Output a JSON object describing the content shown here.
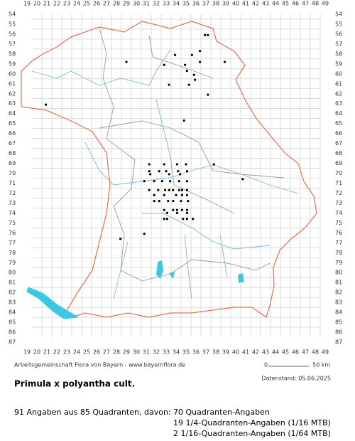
{
  "map": {
    "columns": [
      19,
      20,
      21,
      22,
      23,
      24,
      25,
      26,
      27,
      28,
      29,
      30,
      31,
      32,
      33,
      34,
      35,
      36,
      37,
      38,
      39,
      40,
      41,
      42,
      43,
      44,
      45,
      46,
      47,
      48,
      49
    ],
    "rows": [
      54,
      55,
      56,
      57,
      58,
      59,
      60,
      61,
      62,
      63,
      64,
      65,
      66,
      67,
      68,
      69,
      70,
      71,
      72,
      73,
      74,
      75,
      76,
      77,
      78,
      79,
      80,
      81,
      82,
      83,
      84,
      85,
      86,
      87
    ],
    "points": [
      [
        36.9,
        56.1
      ],
      [
        37.2,
        56.1
      ],
      [
        36.4,
        57.7
      ],
      [
        33.9,
        58.1
      ],
      [
        35.6,
        58.1
      ],
      [
        29.0,
        58.8
      ],
      [
        32.8,
        59.1
      ],
      [
        34.9,
        59.1
      ],
      [
        36.4,
        58.8
      ],
      [
        38.9,
        58.8
      ],
      [
        35.1,
        59.7
      ],
      [
        35.8,
        60.1
      ],
      [
        35.9,
        60.6
      ],
      [
        35.3,
        61.1
      ],
      [
        33.3,
        61.1
      ],
      [
        37.2,
        62.1
      ],
      [
        20.9,
        63.1
      ],
      [
        34.8,
        64.7
      ],
      [
        37.8,
        69.1
      ],
      [
        40.7,
        70.6
      ],
      [
        31.3,
        69.1
      ],
      [
        32.8,
        69.1
      ],
      [
        34.1,
        69.1
      ],
      [
        35.0,
        69.1
      ],
      [
        31.3,
        69.8
      ],
      [
        32.3,
        69.8
      ],
      [
        33.0,
        69.8
      ],
      [
        34.2,
        69.8
      ],
      [
        35.1,
        69.8
      ],
      [
        31.4,
        70.1
      ],
      [
        33.3,
        70.1
      ],
      [
        34.4,
        70.1
      ],
      [
        30.8,
        70.8
      ],
      [
        31.8,
        70.8
      ],
      [
        32.6,
        70.8
      ],
      [
        33.4,
        70.8
      ],
      [
        34.3,
        70.8
      ],
      [
        35.1,
        70.8
      ],
      [
        31.3,
        71.7
      ],
      [
        32.2,
        71.7
      ],
      [
        32.9,
        71.7
      ],
      [
        33.3,
        71.7
      ],
      [
        33.7,
        71.7
      ],
      [
        34.3,
        71.7
      ],
      [
        34.6,
        71.7
      ],
      [
        35.1,
        71.7
      ],
      [
        31.8,
        72.2
      ],
      [
        32.8,
        72.2
      ],
      [
        34.0,
        72.2
      ],
      [
        34.6,
        72.2
      ],
      [
        35.1,
        72.2
      ],
      [
        31.8,
        72.8
      ],
      [
        32.3,
        72.8
      ],
      [
        33.2,
        72.8
      ],
      [
        33.7,
        72.8
      ],
      [
        34.5,
        72.8
      ],
      [
        35.2,
        72.8
      ],
      [
        32.8,
        73.7
      ],
      [
        33.7,
        73.7
      ],
      [
        34.1,
        73.7
      ],
      [
        34.6,
        73.7
      ],
      [
        35.1,
        73.7
      ],
      [
        33.1,
        74.0
      ],
      [
        34.1,
        74.0
      ],
      [
        35.1,
        74.0
      ],
      [
        32.8,
        74.6
      ],
      [
        33.1,
        74.6
      ],
      [
        34.7,
        74.6
      ],
      [
        35.1,
        74.6
      ],
      [
        35.7,
        74.6
      ],
      [
        30.8,
        76.1
      ],
      [
        28.4,
        76.6
      ]
    ],
    "credit": "Arbeitsgemeinschaft Flora von Bayern - www.bayernflora.de",
    "scale_start": "0",
    "scale_end": "50 km",
    "date": "Datenstand: 05.06.2025"
  },
  "title": "Primula x polyantha cult.",
  "summary": "91 Angaben aus 85 Quadranten, davon:",
  "details": [
    "70 Quadranten-Angaben",
    "19 1/4-Quadranten-Angaben (1/16 MTB)",
    "2 1/16-Quadranten-Angaben (1/64 MTB)"
  ]
}
